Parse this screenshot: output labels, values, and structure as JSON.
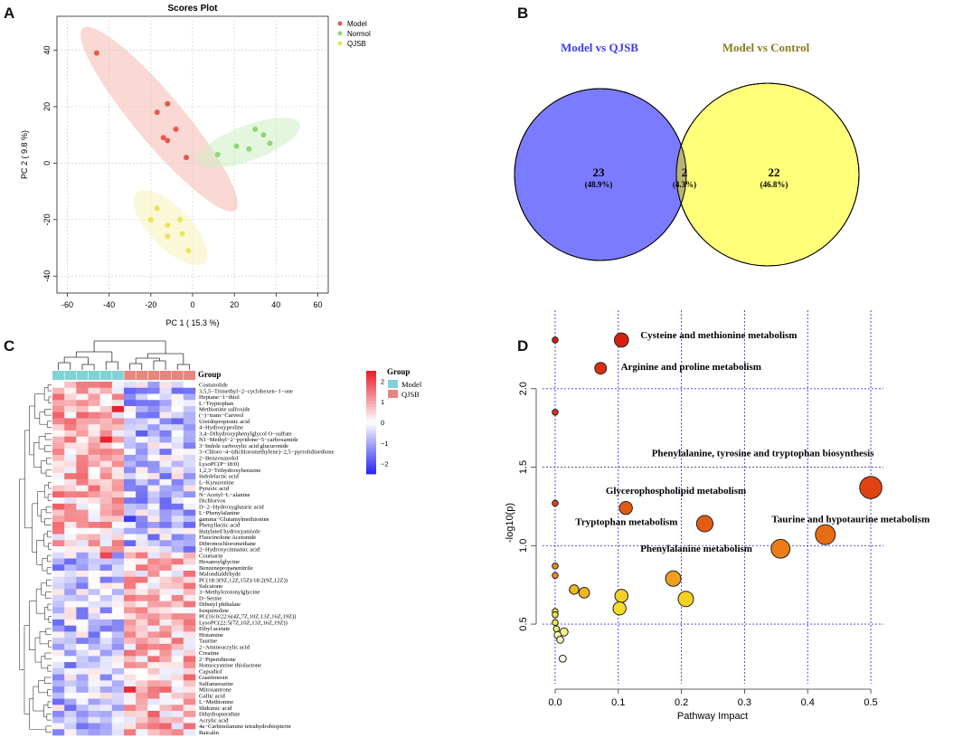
{
  "panels": {
    "a": "A",
    "b": "B",
    "c": "C",
    "d": "D"
  },
  "chart_data": [
    {
      "id": "A",
      "type": "scatter",
      "title": "Scores Plot",
      "xlabel": "PC 1 ( 15.3 %)",
      "ylabel": "PC 2 ( 9.8 %)",
      "xlim": [
        -65,
        65
      ],
      "ylim": [
        -46,
        52
      ],
      "xticks": [
        -60,
        -40,
        -20,
        0,
        20,
        40,
        60
      ],
      "yticks": [
        -40,
        -20,
        0,
        20,
        40
      ],
      "grid": true,
      "legend_position": "top-right",
      "series": [
        {
          "name": "Model",
          "color": "#e8594a",
          "fill": "#f5b8ae",
          "points": [
            [
              -46,
              39
            ],
            [
              -12,
              21
            ],
            [
              -17,
              18
            ],
            [
              -8,
              12
            ],
            [
              -14,
              9
            ],
            [
              -12,
              8
            ],
            [
              -3,
              2
            ]
          ]
        },
        {
          "name": "Normol",
          "color": "#8ed873",
          "fill": "#cfeec4",
          "points": [
            [
              12,
              3
            ],
            [
              21,
              6
            ],
            [
              27,
              5
            ],
            [
              30,
              12
            ],
            [
              34,
              10
            ],
            [
              37,
              7
            ]
          ]
        },
        {
          "name": "QJSB",
          "color": "#e8e55a",
          "fill": "#f6f3b8",
          "points": [
            [
              -20,
              -20
            ],
            [
              -17,
              -16
            ],
            [
              -12,
              -22
            ],
            [
              -6,
              -20
            ],
            [
              -5,
              -25
            ],
            [
              -2,
              -31
            ],
            [
              -12,
              -26
            ]
          ]
        }
      ]
    },
    {
      "id": "B",
      "type": "venn",
      "sets": [
        {
          "label": "Model vs QJSB",
          "color": "#7b7bff",
          "label_color": "#3c3cf0"
        },
        {
          "label": "Model vs Control",
          "color": "#ffff7a",
          "label_color": "#8a7c1c"
        }
      ],
      "overlap_color": "#b9b474",
      "regions": [
        {
          "count": "23",
          "pct": "(48.9%)"
        },
        {
          "count": "2",
          "pct": "(4.3%)"
        },
        {
          "count": "22",
          "pct": "(46.8%)"
        }
      ]
    },
    {
      "id": "C",
      "type": "heatmap",
      "legend_title": "Group",
      "groups": [
        {
          "name": "Model",
          "color": "#7fd3d5"
        },
        {
          "name": "QJSB",
          "color": "#e8857e"
        }
      ],
      "color_scale": {
        "min": -2.5,
        "max": 2.5,
        "ticks": [
          "2",
          "1",
          "0",
          "−1",
          "−2"
        ],
        "low": "#2b2bf0",
        "mid": "#ffffff",
        "high": "#e8222a"
      },
      "rows": [
        "Costunolide",
        "3,5,5−Trimethyl−2−cyclohexen−1−one",
        "Heptane−1−thiol",
        "L−Tryptophan",
        "Methionine sulfoxide",
        "(−)−trans−Carveol",
        "Ureidopropionic acid",
        "4−Hydroxyproline",
        "3,4−Dihydroxyphenylglycol O−sulfate",
        "N1−Methyl−2−pyridone−5−carboxamide",
        "3−Indole carboxylic acid glucuronide",
        "3−Chloro−4−(dichloromethylene)−2,5−pyrrolidinedione",
        "2−Benzoxazolol",
        "LysoPC(P−18:0)",
        "1,2,3−Trihydroxybenzene",
        "Indolelactic acid",
        "L−Kynurenine",
        "Pyruvic acid",
        "N−Acetyl−L−alanine",
        "Dichlorvos",
        "D−2−Hydroxyglutaric acid",
        "L−Phenylalanine",
        "gamma−Glutamylmethionine",
        "Phenyllactic acid",
        "Butylated hydroxyanisole",
        "Fluocinolone Acetonide",
        "Dibromochloromethane",
        "2−Hydroxycinnamic acid",
        "Coumarin",
        "Hexanoylglycine",
        "Benzenepropanenitrile",
        "Malondialdehyde",
        "PC(18:3(9Z,12Z,15Z)/18:2(9Z,12Z))",
        "Sulcatone",
        "3−Methylcrotonylglycine",
        "D−Serine",
        "Dibutyl phthalate",
        "Isoquinoline",
        "PC(16:0/22:6(4Z,7Z,10Z,13Z,16Z,19Z))",
        "LysoPC(22:5(7Z,10Z,13Z,16Z,19Z))",
        "Ethyl acetate",
        "Histamine",
        "Taurine",
        "2−Aminoacrylic acid",
        "Creatine",
        "2−Piperidinone",
        "Homocysteine thiolactone",
        "Capsidiol",
        "Guaifenesin",
        "Sulfamerazine",
        "Mitoxantrone",
        "Gallic acid",
        "L−Methionine",
        "Shikimic acid",
        "Dihydropteridine",
        "Acrylic acid",
        "4a−Carbinolamine tetrahydrobiopterin",
        "Baicalin"
      ]
    },
    {
      "id": "D",
      "type": "scatter",
      "xlabel": "Pathway Impact",
      "ylabel": "-log10(p)",
      "xlim": [
        -0.02,
        0.52
      ],
      "ylim": [
        0.12,
        2.5
      ],
      "xticks": [
        0.0,
        0.1,
        0.2,
        0.3,
        0.4,
        0.5
      ],
      "yticks": [
        0.5,
        1.0,
        1.5,
        2.0
      ],
      "grid": true,
      "points": [
        {
          "x": 0.105,
          "y": 2.31,
          "size": 1.2,
          "color": "#d61f10"
        },
        {
          "x": 0.0,
          "y": 2.31,
          "size": 0.5,
          "color": "#d61f10"
        },
        {
          "x": 0.072,
          "y": 2.13,
          "size": 1.0,
          "color": "#d8300f"
        },
        {
          "x": 0.0,
          "y": 1.85,
          "size": 0.5,
          "color": "#d8350f"
        },
        {
          "x": 0.5,
          "y": 1.37,
          "size": 1.9,
          "color": "#e04310"
        },
        {
          "x": 0.0,
          "y": 1.27,
          "size": 0.5,
          "color": "#dd4510"
        },
        {
          "x": 0.112,
          "y": 1.24,
          "size": 1.1,
          "color": "#e25a12"
        },
        {
          "x": 0.237,
          "y": 1.14,
          "size": 1.4,
          "color": "#e35c12"
        },
        {
          "x": 0.428,
          "y": 1.07,
          "size": 1.7,
          "color": "#e86c14"
        },
        {
          "x": 0.357,
          "y": 0.98,
          "size": 1.6,
          "color": "#ec7d16"
        },
        {
          "x": 0.0,
          "y": 0.87,
          "size": 0.5,
          "color": "#e88a18"
        },
        {
          "x": 0.0,
          "y": 0.81,
          "size": 0.5,
          "color": "#ea8d18"
        },
        {
          "x": 0.187,
          "y": 0.79,
          "size": 1.3,
          "color": "#f09e1e"
        },
        {
          "x": 0.03,
          "y": 0.72,
          "size": 0.8,
          "color": "#f2b520"
        },
        {
          "x": 0.046,
          "y": 0.7,
          "size": 0.9,
          "color": "#f2b520"
        },
        {
          "x": 0.105,
          "y": 0.68,
          "size": 1.1,
          "color": "#f5d024"
        },
        {
          "x": 0.207,
          "y": 0.66,
          "size": 1.3,
          "color": "#f5d024"
        },
        {
          "x": 0.102,
          "y": 0.6,
          "size": 1.1,
          "color": "#f5dc26"
        },
        {
          "x": 0.0,
          "y": 0.58,
          "size": 0.5,
          "color": "#f0e23c"
        },
        {
          "x": 0.0,
          "y": 0.56,
          "size": 0.5,
          "color": "#f0e23c"
        },
        {
          "x": 0.0,
          "y": 0.51,
          "size": 0.5,
          "color": "#f0e550"
        },
        {
          "x": 0.002,
          "y": 0.47,
          "size": 0.5,
          "color": "#f2ea6a"
        },
        {
          "x": 0.014,
          "y": 0.45,
          "size": 0.7,
          "color": "#f4f08a"
        },
        {
          "x": 0.004,
          "y": 0.43,
          "size": 0.6,
          "color": "#f6f2a8"
        },
        {
          "x": 0.008,
          "y": 0.4,
          "size": 0.6,
          "color": "#f8f5c0"
        },
        {
          "x": 0.012,
          "y": 0.28,
          "size": 0.6,
          "color": "#fbfbf2"
        }
      ],
      "annotations": [
        {
          "text": "Cysteine and methionine metabolism",
          "x": 0.135,
          "y": 2.32,
          "anchor": "start"
        },
        {
          "text": "Arginine and proline metabolism",
          "x": 0.104,
          "y": 2.12,
          "anchor": "start"
        },
        {
          "text": "Phenylalanine, tyrosine and tryptophan biosynthesis",
          "x": 0.505,
          "y": 1.57,
          "anchor": "end"
        },
        {
          "text": "Glycerophospholipid metabolism",
          "x": 0.08,
          "y": 1.33,
          "anchor": "start"
        },
        {
          "text": "Tryptophan metabolism",
          "x": 0.032,
          "y": 1.13,
          "anchor": "start"
        },
        {
          "text": "Taurine and hypotaurine metabolism",
          "x": 0.343,
          "y": 1.15,
          "anchor": "start"
        },
        {
          "text": "Phenylalanine metabolism",
          "x": 0.135,
          "y": 0.96,
          "anchor": "start"
        }
      ]
    }
  ]
}
